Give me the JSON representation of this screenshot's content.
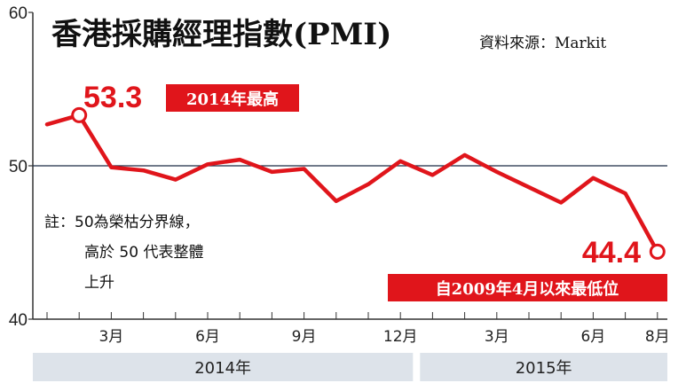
{
  "header": {
    "title": "香港採購經理指數(PMI)",
    "source": "資料來源：Markit"
  },
  "annotations": {
    "high_value": "53.3",
    "high_label": "2014年最高",
    "low_value": "44.4",
    "low_label": "自2009年4月以來最低位",
    "note_lines": [
      "註：50為榮枯分界線，",
      "高於 50 代表整體",
      "上升"
    ]
  },
  "colors": {
    "line": "#e0151b",
    "tag_background": "#e0151b",
    "year_band": "#dde3ea",
    "axis": "#333333"
  },
  "chart_data": {
    "type": "line",
    "title": "香港採購經理指數(PMI)",
    "xlabel": "",
    "ylabel": "",
    "ylim": [
      40,
      60
    ],
    "yticks": [
      40,
      50,
      60
    ],
    "reference_line": 50,
    "grid": false,
    "x": [
      "2014-01",
      "2014-02",
      "2014-03",
      "2014-04",
      "2014-05",
      "2014-06",
      "2014-07",
      "2014-08",
      "2014-09",
      "2014-10",
      "2014-11",
      "2014-12",
      "2015-01",
      "2015-02",
      "2015-03",
      "2015-04",
      "2015-05",
      "2015-06",
      "2015-07",
      "2015-08"
    ],
    "series": [
      {
        "values": [
          52.7,
          53.3,
          49.9,
          49.7,
          49.1,
          50.1,
          50.4,
          49.6,
          49.8,
          47.7,
          48.8,
          50.3,
          49.4,
          50.7,
          49.6,
          48.6,
          47.6,
          49.2,
          48.2,
          44.4
        ]
      }
    ],
    "xtick_labels": [
      {
        "label": "3月",
        "index": 2
      },
      {
        "label": "6月",
        "index": 5
      },
      {
        "label": "9月",
        "index": 8
      },
      {
        "label": "12月",
        "index": 11
      },
      {
        "label": "3月",
        "index": 14
      },
      {
        "label": "6月",
        "index": 17
      },
      {
        "label": "8月",
        "index": 19
      }
    ],
    "year_labels": [
      {
        "label": "2014年",
        "start": 0,
        "end": 11
      },
      {
        "label": "2015年",
        "start": 12,
        "end": 19
      }
    ],
    "highlight_points": [
      1,
      19
    ]
  }
}
